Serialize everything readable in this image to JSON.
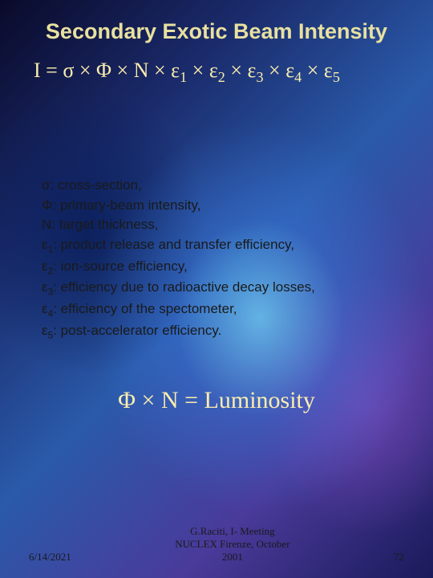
{
  "title": "Secondary Exotic Beam Intensity",
  "equation": {
    "lhs": "I",
    "terms": [
      "σ",
      "Φ",
      "N",
      "ε₁",
      "ε₂",
      "ε₃",
      "ε₄",
      "ε₅"
    ],
    "rendered": "I = σ × Φ × N × ε",
    "color": "#faedae",
    "fontsize": 26
  },
  "definitions": [
    {
      "symbol": "σ",
      "text": "cross-section,"
    },
    {
      "symbol": "Φ",
      "text": "primary-beam intensity,"
    },
    {
      "symbol": "N",
      "text": "target thickness,"
    },
    {
      "symbol": "ε",
      "sub": "1",
      "text": "product release and transfer efficiency,"
    },
    {
      "symbol": "ε",
      "sub": "2",
      "text": "ion-source efficiency,"
    },
    {
      "symbol": "ε",
      "sub": "3",
      "text": "efficiency due to radioactive decay losses,"
    },
    {
      "symbol": "ε",
      "sub": "4",
      "text": "efficiency of the spectometer,"
    },
    {
      "symbol": "ε",
      "sub": "5",
      "text": "post-accelerator efficiency."
    }
  ],
  "luminosity": {
    "text": "Φ × N = Luminosity",
    "color": "#faedae",
    "fontsize": 30
  },
  "footer": {
    "date": "6/14/2021",
    "center_line1": "G.Raciti, I- Meeting",
    "center_line2": "NUCLEX Firenze, October",
    "center_line3": "2001",
    "page": "72"
  },
  "colors": {
    "title": "#e8e0a0",
    "equation": "#faedae",
    "definition_text": "#1a1a1a",
    "footer_text": "#1a1a1a"
  },
  "sep": " × "
}
